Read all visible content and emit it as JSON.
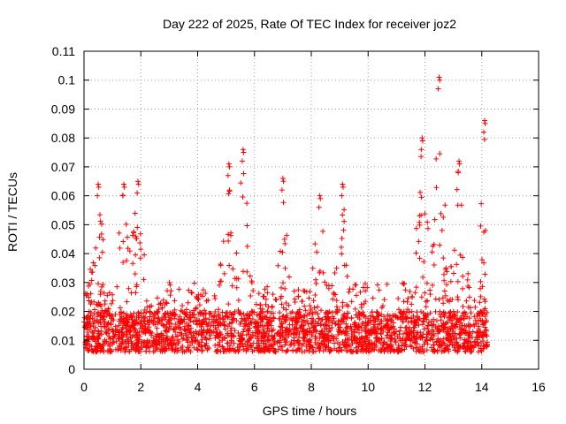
{
  "chart_data": {
    "type": "scatter",
    "title": "Day 222 of 2025, Rate Of TEC Index for receiver joz2",
    "xlabel": "GPS time / hours",
    "ylabel": "ROTI / TECUs",
    "xlim": [
      0,
      16
    ],
    "ylim": [
      0,
      0.11
    ],
    "xticks": [
      0,
      2,
      4,
      6,
      8,
      10,
      12,
      14,
      16
    ],
    "xtick_labels": [
      "0",
      "2",
      "4",
      "6",
      "8",
      "10",
      "12",
      "14",
      "16"
    ],
    "yticks": [
      0,
      0.01,
      0.02,
      0.03,
      0.04,
      0.05,
      0.06,
      0.07,
      0.08,
      0.09,
      0.1,
      0.11
    ],
    "ytick_labels": [
      "0",
      "0.01",
      "0.02",
      "0.03",
      "0.04",
      "0.05",
      "0.06",
      "0.07",
      "0.08",
      "0.09",
      "0.1",
      "0.11"
    ],
    "grid": true,
    "marker": "plus",
    "marker_color": "#ff0000",
    "series": [
      {
        "name": "ROTI",
        "data_range_x": [
          0,
          14.2
        ],
        "typical_band": [
          0.006,
          0.02
        ],
        "peaks": [
          {
            "x": 0.5,
            "y": 0.064
          },
          {
            "x": 1.4,
            "y": 0.064
          },
          {
            "x": 1.9,
            "y": 0.065
          },
          {
            "x": 5.1,
            "y": 0.071
          },
          {
            "x": 5.6,
            "y": 0.076
          },
          {
            "x": 7.0,
            "y": 0.066
          },
          {
            "x": 8.3,
            "y": 0.06
          },
          {
            "x": 9.1,
            "y": 0.064
          },
          {
            "x": 11.9,
            "y": 0.08
          },
          {
            "x": 12.5,
            "y": 0.101
          },
          {
            "x": 13.2,
            "y": 0.072
          },
          {
            "x": 14.1,
            "y": 0.086
          }
        ]
      }
    ]
  }
}
